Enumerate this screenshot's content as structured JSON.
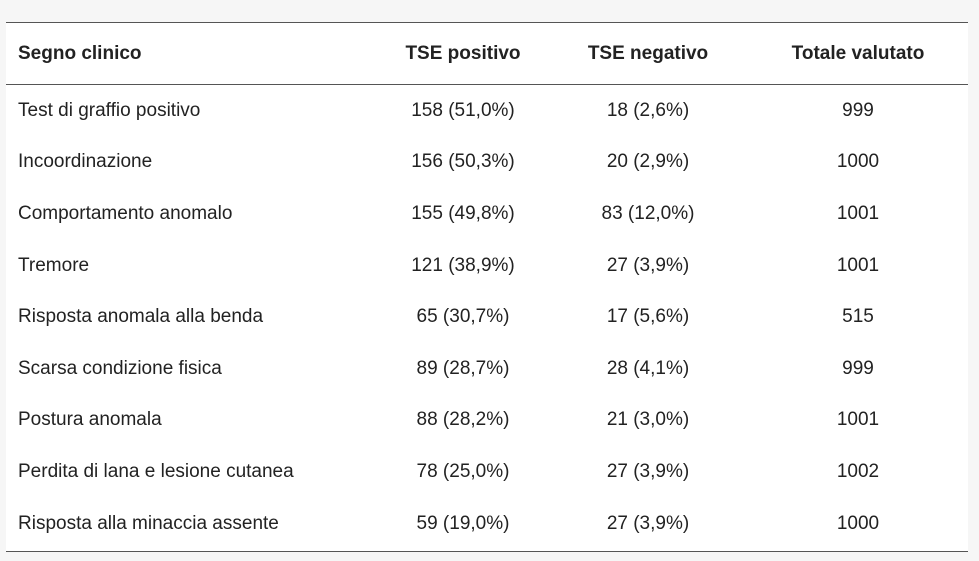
{
  "table": {
    "headers": [
      "Segno clinico",
      "TSE positivo",
      "TSE negativo",
      "Totale valutato"
    ],
    "rows": [
      [
        "Test di graffio positivo",
        "158 (51,0%)",
        "18 (2,6%)",
        "999"
      ],
      [
        "Incoordinazione",
        "156 (50,3%)",
        "20 (2,9%)",
        "1000"
      ],
      [
        "Comportamento anomalo",
        "155 (49,8%)",
        "83 (12,0%)",
        "1001"
      ],
      [
        "Tremore",
        "121 (38,9%)",
        "27 (3,9%)",
        "1001"
      ],
      [
        "Risposta anomala alla benda",
        "65 (30,7%)",
        "17 (5,6%)",
        "515"
      ],
      [
        "Scarsa condizione fisica",
        "89 (28,7%)",
        "28 (4,1%)",
        "999"
      ],
      [
        "Postura anomala",
        "88 (28,2%)",
        "21 (3,0%)",
        "1001"
      ],
      [
        "Perdita di lana e lesione cutanea",
        "78 (25,0%)",
        "27 (3,9%)",
        "1002"
      ],
      [
        "Risposta alla minaccia assente",
        "59 (19,0%)",
        "27 (3,9%)",
        "1000"
      ]
    ]
  }
}
